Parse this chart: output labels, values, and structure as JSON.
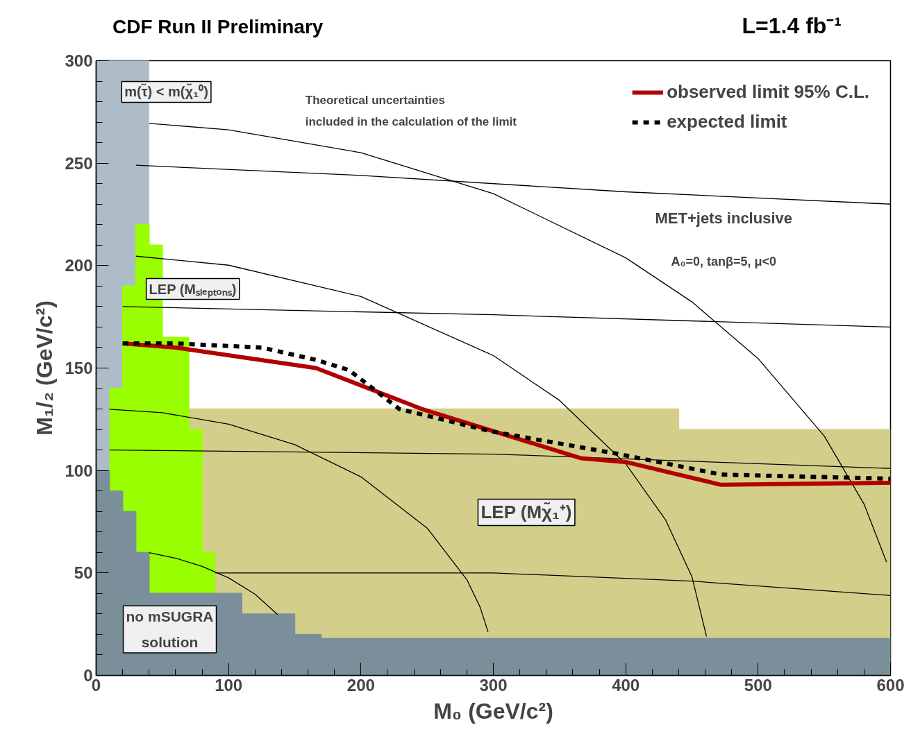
{
  "chart_data": {
    "type": "line",
    "title": "CDF Run II Preliminary",
    "subtitle": "L=1.4 fb⁻¹",
    "xlabel": "M₀ (GeV/c²)",
    "ylabel": "M₁/₂ (GeV/c²)",
    "xlim": [
      0,
      600
    ],
    "ylim": [
      0,
      300
    ],
    "xticks": [
      0,
      100,
      200,
      300,
      400,
      500,
      600
    ],
    "yticks": [
      0,
      50,
      100,
      150,
      200,
      250,
      300
    ],
    "grid": false,
    "legend": "top right",
    "marker": "none",
    "annotations": [
      "m(τ̃) < m(χ̃₁⁰)",
      "Theoretical uncertainties included in the calculation of the limit",
      "MET+jets inclusive",
      "A₀=0, tanβ=5, μ<0",
      "LEP (Mₛₗₑₚₜₒₙₛ)",
      "LEP (Mχ̃₁⁺)",
      "no mSUGRA solution"
    ],
    "series": [
      {
        "type": "area",
        "color": "#adbcc6",
        "x": [
          0,
          40
        ],
        "values": [
          300,
          300
        ]
      },
      {
        "type": "area",
        "color": "#d3cf8a",
        "x": [
          70,
          440,
          440,
          600
        ],
        "values": [
          130,
          130,
          120,
          120
        ]
      },
      {
        "type": "area",
        "color": "#99ff00",
        "x": [
          10,
          20,
          20,
          30,
          30,
          40,
          40,
          50,
          50,
          70,
          70,
          80,
          80,
          90
        ],
        "values": [
          140,
          140,
          190,
          190,
          220,
          220,
          210,
          210,
          165,
          165,
          120,
          120,
          60,
          60
        ]
      },
      {
        "type": "area",
        "color": "#7b8f9a",
        "x": [
          0,
          10,
          10,
          20,
          20,
          30,
          30,
          40,
          40,
          110,
          110,
          150,
          150,
          170,
          170,
          600
        ],
        "values": [
          100,
          100,
          90,
          90,
          80,
          80,
          60,
          60,
          40,
          40,
          30,
          30,
          20,
          20,
          18,
          18
        ]
      },
      {
        "type": "line",
        "color": "#000000",
        "x": [
          30,
          200,
          400,
          600
        ],
        "values": [
          249,
          244,
          236,
          230
        ]
      },
      {
        "type": "line",
        "color": "#000000",
        "x": [
          20,
          300,
          600
        ],
        "values": [
          180,
          176,
          170
        ]
      },
      {
        "type": "line",
        "color": "#000000",
        "x": [
          10,
          300,
          600
        ],
        "values": [
          110,
          108,
          101
        ]
      },
      {
        "type": "line",
        "color": "#000000",
        "x": [
          90,
          300,
          450,
          600
        ],
        "values": [
          50,
          50,
          46,
          39
        ]
      },
      {
        "type": "line",
        "color": "#000000",
        "x": [
          40,
          100,
          200,
          300,
          400,
          450,
          500,
          550,
          580,
          597
        ],
        "values": [
          269.4,
          266.3,
          255.1,
          235.1,
          203.8,
          182.3,
          154.6,
          116.8,
          83.6,
          55.3
        ]
      },
      {
        "type": "line",
        "color": "#000000",
        "x": [
          30,
          100,
          200,
          300,
          350,
          400,
          430,
          450,
          461
        ],
        "values": [
          204.6,
          200.2,
          184.9,
          156.1,
          134.2,
          103.2,
          76.0,
          48.2,
          19.0
        ]
      },
      {
        "type": "line",
        "color": "#000000",
        "x": [
          10,
          50,
          100,
          150,
          200,
          250,
          280,
          290,
          296
        ],
        "values": [
          129.9,
          128.2,
          122.6,
          112.6,
          96.9,
          71.9,
          46.7,
          33.3,
          21.2
        ]
      },
      {
        "type": "line",
        "color": "#000000",
        "x": [
          40,
          60,
          80,
          100,
          120,
          137
        ],
        "values": [
          59.9,
          57.2,
          53.2,
          47.6,
          39.6,
          29.7
        ]
      },
      {
        "name": "observed limit 95% C.L.",
        "color": "#b30000",
        "line_style": "solid",
        "x": [
          20,
          60,
          166,
          246,
          296,
          366,
          401,
          472,
          600
        ],
        "values": [
          162,
          160,
          150,
          130,
          120,
          106,
          104,
          93,
          94
        ]
      },
      {
        "name": "expected limit",
        "color": "#000000",
        "line_style": "dotted",
        "x": [
          20,
          60,
          125,
          166,
          191,
          229,
          299,
          395,
          472,
          600
        ],
        "values": [
          162,
          162,
          160,
          154,
          149,
          130,
          119,
          108,
          98,
          96
        ]
      }
    ]
  }
}
